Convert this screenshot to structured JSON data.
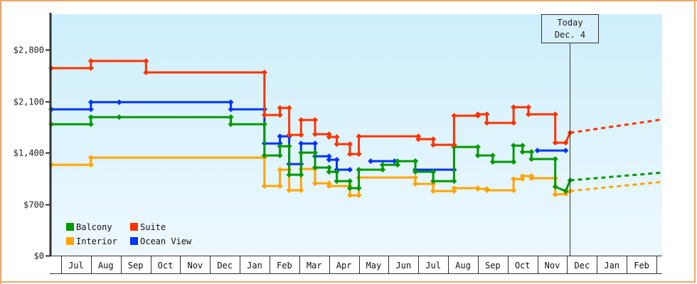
{
  "chart_data": {
    "type": "line",
    "title": "",
    "xlabel": "",
    "ylabel": "",
    "ylim": [
      0,
      3280
    ],
    "y_ticks": [
      {
        "value": 0,
        "label": "$0"
      },
      {
        "value": 700,
        "label": "$700"
      },
      {
        "value": 1400,
        "label": "$1,400"
      },
      {
        "value": 2100,
        "label": "$2,100"
      },
      {
        "value": 2800,
        "label": "$2,800"
      }
    ],
    "categories": [
      "Jul",
      "Aug",
      "Sep",
      "Oct",
      "Nov",
      "Dec",
      "Jan",
      "Feb",
      "Mar",
      "Apr",
      "May",
      "Jun",
      "Jul",
      "Aug",
      "Sep",
      "Oct",
      "Nov",
      "Dec",
      "Jan",
      "Feb"
    ],
    "x_note": "x values are month offsets from the start of the first 'Jul' column (0 = start of Jul, 1 = start of Aug, ...)",
    "grid": false,
    "background_gradient": [
      "#cdeffc",
      "#eef8fe"
    ],
    "today_marker": {
      "x": 17.08,
      "line1": "Today",
      "line2": "Dec. 4"
    },
    "legend": {
      "position": "bottom-left",
      "entries": [
        {
          "name": "Balcony",
          "color": "#009900"
        },
        {
          "name": "Suite",
          "color": "#ff3300"
        },
        {
          "name": "Interior",
          "color": "#ffa500"
        },
        {
          "name": "Ocean View",
          "color": "#0033ff"
        }
      ]
    },
    "series": [
      {
        "name": "Suite",
        "color": "#ff3300",
        "points": [
          [
            -0.33,
            2549
          ],
          [
            1.0,
            2549
          ],
          [
            1.0,
            2646
          ],
          [
            2.85,
            2646
          ],
          [
            2.85,
            2491
          ],
          [
            6.83,
            2491
          ],
          [
            6.83,
            1912
          ],
          [
            7.35,
            1912
          ],
          [
            7.35,
            2008
          ],
          [
            7.66,
            2008
          ],
          [
            7.66,
            1641
          ],
          [
            8.06,
            1641
          ],
          [
            8.06,
            1844
          ],
          [
            8.53,
            1844
          ],
          [
            8.53,
            1651
          ],
          [
            9.0,
            1651
          ],
          [
            9.0,
            1612
          ],
          [
            9.26,
            1612
          ],
          [
            9.26,
            1516
          ],
          [
            9.7,
            1516
          ],
          [
            9.7,
            1381
          ],
          [
            10.0,
            1381
          ],
          [
            10.0,
            1622
          ],
          [
            12.0,
            1622
          ],
          [
            12.0,
            1583
          ],
          [
            12.5,
            1583
          ],
          [
            12.5,
            1506
          ],
          [
            13.2,
            1506
          ],
          [
            13.2,
            1902
          ],
          [
            14.0,
            1902
          ],
          [
            14.0,
            1921
          ],
          [
            14.3,
            1921
          ],
          [
            14.3,
            1805
          ],
          [
            15.2,
            1805
          ],
          [
            15.2,
            2018
          ],
          [
            15.7,
            2018
          ],
          [
            15.7,
            1921
          ],
          [
            16.6,
            1921
          ],
          [
            16.6,
            1535
          ],
          [
            16.95,
            1535
          ],
          [
            16.95,
            1535
          ],
          [
            17.1,
            1670
          ]
        ],
        "projection": [
          [
            17.1,
            1670
          ],
          [
            20.2,
            1852
          ]
        ]
      },
      {
        "name": "Ocean View",
        "color": "#0033ff",
        "points": [
          [
            -0.33,
            1989
          ],
          [
            1.0,
            1989
          ],
          [
            1.0,
            2086
          ],
          [
            1.95,
            2086
          ],
          [
            5.7,
            2086
          ],
          [
            5.7,
            1989
          ],
          [
            6.83,
            1989
          ],
          [
            6.83,
            1525
          ],
          [
            7.35,
            1525
          ],
          [
            7.35,
            1622
          ],
          [
            7.66,
            1622
          ],
          [
            7.66,
            1245
          ],
          [
            8.06,
            1245
          ],
          [
            8.06,
            1525
          ],
          [
            8.53,
            1525
          ],
          [
            8.53,
            1351
          ],
          [
            9.0,
            1351
          ],
          [
            9.0,
            1303
          ],
          [
            9.26,
            1303
          ],
          [
            9.26,
            1168
          ],
          [
            9.7,
            1168
          ],
          [
            10.4,
            1284
          ],
          [
            11.2,
            1284
          ],
          [
            11.9,
            1284
          ],
          [
            11.9,
            1168
          ],
          [
            13.2,
            1168
          ]
        ],
        "segments_note": "line broken between 9.7 and 10.4",
        "late_segment": [
          [
            16.0,
            1429
          ],
          [
            16.95,
            1429
          ]
        ]
      },
      {
        "name": "Balcony",
        "color": "#009900",
        "points": [
          [
            -0.33,
            1786
          ],
          [
            1.0,
            1786
          ],
          [
            1.0,
            1883
          ],
          [
            1.95,
            1883
          ],
          [
            5.7,
            1883
          ],
          [
            5.7,
            1786
          ],
          [
            6.83,
            1786
          ],
          [
            6.83,
            1361
          ],
          [
            7.35,
            1361
          ],
          [
            7.35,
            1487
          ],
          [
            7.66,
            1487
          ],
          [
            7.66,
            1100
          ],
          [
            8.06,
            1100
          ],
          [
            8.06,
            1400
          ],
          [
            8.53,
            1400
          ],
          [
            8.53,
            1197
          ],
          [
            9.0,
            1197
          ],
          [
            9.0,
            1139
          ],
          [
            9.26,
            1139
          ],
          [
            9.26,
            1013
          ],
          [
            9.7,
            1013
          ],
          [
            9.7,
            917
          ],
          [
            10.0,
            917
          ],
          [
            10.0,
            1168
          ],
          [
            10.8,
            1168
          ],
          [
            10.8,
            1235
          ],
          [
            11.3,
            1235
          ],
          [
            11.3,
            1284
          ],
          [
            11.9,
            1284
          ],
          [
            11.9,
            1139
          ],
          [
            12.5,
            1139
          ],
          [
            12.5,
            1013
          ],
          [
            13.2,
            1013
          ],
          [
            13.2,
            1477
          ],
          [
            14.0,
            1477
          ],
          [
            14.0,
            1361
          ],
          [
            14.5,
            1361
          ],
          [
            14.5,
            1274
          ],
          [
            15.2,
            1274
          ],
          [
            15.2,
            1496
          ],
          [
            15.5,
            1496
          ],
          [
            15.5,
            1410
          ],
          [
            15.8,
            1410
          ],
          [
            15.8,
            1313
          ],
          [
            16.6,
            1313
          ],
          [
            16.6,
            936
          ],
          [
            16.95,
            878
          ],
          [
            17.1,
            1023
          ]
        ],
        "projection": [
          [
            17.1,
            1023
          ],
          [
            20.2,
            1129
          ]
        ]
      },
      {
        "name": "Interior",
        "color": "#ffa500",
        "points": [
          [
            -0.33,
            1235
          ],
          [
            1.0,
            1235
          ],
          [
            1.0,
            1332
          ],
          [
            6.83,
            1332
          ],
          [
            6.83,
            946
          ],
          [
            7.35,
            946
          ],
          [
            7.35,
            1168
          ],
          [
            7.66,
            1168
          ],
          [
            7.66,
            888
          ],
          [
            8.06,
            888
          ],
          [
            8.06,
            1178
          ],
          [
            8.53,
            1178
          ],
          [
            8.53,
            984
          ],
          [
            9.0,
            984
          ],
          [
            9.0,
            946
          ],
          [
            9.7,
            946
          ],
          [
            9.7,
            820
          ],
          [
            10.0,
            820
          ],
          [
            10.0,
            1062
          ],
          [
            11.9,
            1062
          ],
          [
            11.9,
            975
          ],
          [
            12.5,
            975
          ],
          [
            12.5,
            878
          ],
          [
            13.2,
            878
          ],
          [
            13.2,
            917
          ],
          [
            14.0,
            917
          ],
          [
            14.0,
            907
          ],
          [
            14.3,
            907
          ],
          [
            14.3,
            888
          ],
          [
            15.2,
            888
          ],
          [
            15.2,
            1042
          ],
          [
            15.5,
            1042
          ],
          [
            15.5,
            1081
          ],
          [
            15.8,
            1081
          ],
          [
            15.8,
            1052
          ],
          [
            16.6,
            1052
          ],
          [
            16.6,
            830
          ],
          [
            16.95,
            840
          ],
          [
            17.1,
            878
          ]
        ],
        "projection": [
          [
            17.1,
            878
          ],
          [
            20.2,
            1003
          ]
        ]
      }
    ]
  }
}
